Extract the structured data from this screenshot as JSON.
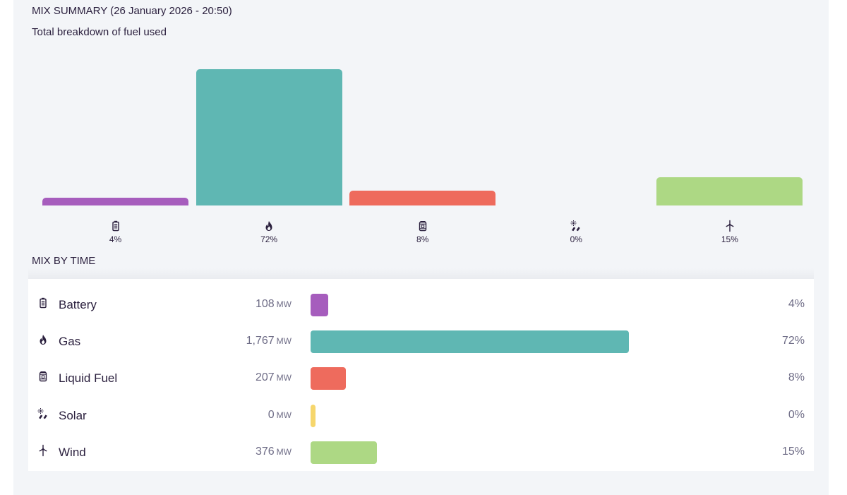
{
  "summary": {
    "title": "MIX SUMMARY (26 January 2026 - 20:50)",
    "subtitle": "Total breakdown of fuel used"
  },
  "chart_data": {
    "type": "bar",
    "title": "MIX SUMMARY (26 January 2026 - 20:50)",
    "subtitle": "Total breakdown of fuel used",
    "categories": [
      "Battery",
      "Gas",
      "Liquid Fuel",
      "Solar",
      "Wind"
    ],
    "icons": [
      "battery-icon",
      "flame-icon",
      "fuel-can-icon",
      "solar-icon",
      "wind-turbine-icon"
    ],
    "values": [
      4,
      72,
      8,
      0,
      15
    ],
    "labels": [
      "4%",
      "72%",
      "8%",
      "0%",
      "15%"
    ],
    "colors": [
      "#a65dbd",
      "#5fb7b3",
      "#ee6b5d",
      "#f6d66c",
      "#add884"
    ],
    "unit": "%",
    "ylim": [
      0,
      72
    ],
    "xlabel": "",
    "ylabel": ""
  },
  "mix_by_time": {
    "title": "MIX BY TIME",
    "unit": "MW",
    "rows": [
      {
        "name": "Battery",
        "icon": "battery-icon",
        "mw": "108",
        "pct_label": "4%",
        "pct": 4,
        "color": "#a65dbd"
      },
      {
        "name": "Gas",
        "icon": "flame-icon",
        "mw": "1,767",
        "pct_label": "72%",
        "pct": 72,
        "color": "#5fb7b3"
      },
      {
        "name": "Liquid Fuel",
        "icon": "fuel-can-icon",
        "mw": "207",
        "pct_label": "8%",
        "pct": 8,
        "color": "#ee6b5d"
      },
      {
        "name": "Solar",
        "icon": "solar-icon",
        "mw": "0",
        "pct_label": "0%",
        "pct": 0,
        "color": "#f6d66c"
      },
      {
        "name": "Wind",
        "icon": "wind-turbine-icon",
        "mw": "376",
        "pct_label": "15%",
        "pct": 15,
        "color": "#add884"
      }
    ]
  }
}
